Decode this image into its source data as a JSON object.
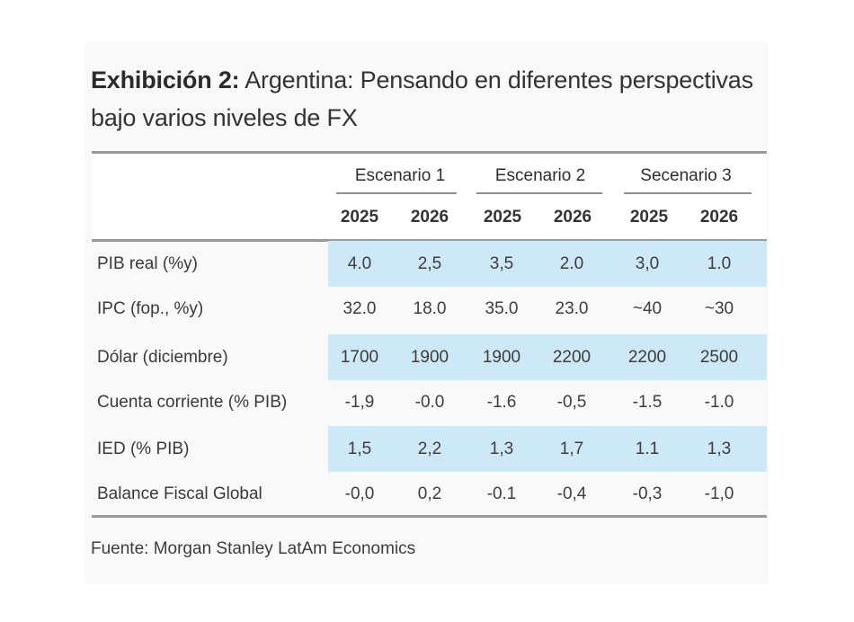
{
  "exhibit": {
    "title_lead": "Exhibición 2:",
    "title_rest": " Argentina: Pensando en diferentes perspectivas bajo varios niveles de FX",
    "source": "Fuente: Morgan Stanley LatAm Economics",
    "colors": {
      "highlight_row": "#cde8f6",
      "rule": "#9a9a9a",
      "card_background": "#f9f9f9"
    }
  },
  "table": {
    "scenarios": [
      {
        "label": "Escenario 1",
        "years": [
          "2025",
          "2026"
        ]
      },
      {
        "label": "Escenario 2",
        "years": [
          "2025",
          "2026"
        ]
      },
      {
        "label": "Secenario 3",
        "years": [
          "2025",
          "2026"
        ]
      }
    ],
    "rows": [
      {
        "label": "PIB real (%y)",
        "highlighted": true,
        "values": [
          "4.0",
          "2,5",
          "3,5",
          "2.0",
          "3,0",
          "1.0"
        ]
      },
      {
        "label": "IPC (fop., %y)",
        "highlighted": false,
        "values": [
          "32.0",
          "18.0",
          "35.0",
          "23.0",
          "~40",
          "~30"
        ]
      },
      {
        "label": "Dólar (diciembre)",
        "highlighted": true,
        "values": [
          "1700",
          "1900",
          "1900",
          "2200",
          "2200",
          "2500"
        ]
      },
      {
        "label": "Cuenta corriente (% PIB)",
        "highlighted": false,
        "values": [
          "-1,9",
          "-0.0",
          "-1.6",
          "-0,5",
          "-1.5",
          "-1.0"
        ]
      },
      {
        "label": "IED (% PIB)",
        "highlighted": true,
        "values": [
          "1,5",
          "2,2",
          "1,3",
          "1,7",
          "1.1",
          "1,3"
        ]
      },
      {
        "label": "Balance Fiscal Global",
        "highlighted": false,
        "values": [
          "-0,0",
          "0,2",
          "-0.1",
          "-0,4",
          "-0,3",
          "-1,0"
        ]
      }
    ]
  }
}
